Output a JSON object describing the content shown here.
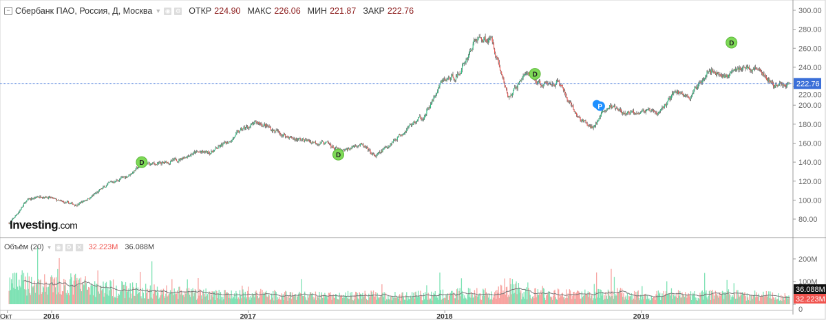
{
  "header": {
    "symbol": "Сбербанк ПАО, Россия, Д, Москва",
    "open_label": "ОТКР",
    "open": "224.90",
    "high_label": "МАКС",
    "high": "226.06",
    "low_label": "МИН",
    "low": "221.87",
    "close_label": "ЗАКР",
    "close": "222.76"
  },
  "volume_legend": {
    "label": "Объём (20)",
    "volume": "32.223M",
    "ma": "36.088M"
  },
  "logo": {
    "text": "Investing",
    "suffix": ".com"
  },
  "colors": {
    "up": "#26c281",
    "down": "#f0544f",
    "up_vol": "#7ee2b4",
    "down_vol": "#f7a3a0",
    "last_price": "#3b6fd8",
    "ma": "#777777",
    "dividend": "#7ed957",
    "event": "#1e90ff"
  },
  "chart_data": {
    "type": "candlestick",
    "price_axis": {
      "ticks": [
        "300.00",
        "280.00",
        "260.00",
        "240.00",
        "220.00",
        "200.00",
        "180.00",
        "160.00",
        "140.00",
        "120.00",
        "100.00",
        "80.00"
      ],
      "range": [
        75,
        302
      ]
    },
    "volume_axis": {
      "ticks": [
        "200M",
        "100M",
        "0"
      ],
      "range": [
        0,
        330
      ]
    },
    "time_axis": {
      "ticks": [
        "Окт",
        "2016",
        "2017",
        "2018",
        "2019"
      ]
    },
    "last_price": "222.76",
    "last_volume": "32.223M",
    "last_volume_ma": "36.088M",
    "monthly_close": {
      "months": [
        "2015-10",
        "2015-11",
        "2015-12",
        "2016-01",
        "2016-02",
        "2016-03",
        "2016-04",
        "2016-05",
        "2016-06",
        "2016-07",
        "2016-08",
        "2016-09",
        "2016-10",
        "2016-11",
        "2016-12",
        "2017-01",
        "2017-02",
        "2017-03",
        "2017-04",
        "2017-05",
        "2017-06",
        "2017-07",
        "2017-08",
        "2017-09",
        "2017-10",
        "2017-11",
        "2017-12",
        "2018-01",
        "2018-02",
        "2018-03",
        "2018-04",
        "2018-05",
        "2018-06",
        "2018-07",
        "2018-08",
        "2018-09",
        "2018-10",
        "2018-11",
        "2018-12",
        "2019-01",
        "2019-02",
        "2019-03",
        "2019-04",
        "2019-05",
        "2019-06",
        "2019-07",
        "2019-08",
        "2019-09"
      ],
      "values": [
        76,
        100,
        105,
        98,
        95,
        105,
        118,
        125,
        138,
        138,
        142,
        150,
        150,
        160,
        175,
        182,
        172,
        165,
        162,
        160,
        150,
        160,
        145,
        162,
        178,
        190,
        225,
        232,
        270,
        270,
        205,
        235,
        220,
        225,
        190,
        175,
        200,
        190,
        195,
        190,
        215,
        208,
        240,
        230,
        240,
        238,
        220,
        223
      ]
    },
    "monthly_avg_volume_m": [
      90,
      95,
      85,
      80,
      90,
      75,
      70,
      65,
      60,
      55,
      50,
      45,
      45,
      40,
      40,
      45,
      40,
      38,
      36,
      35,
      35,
      40,
      38,
      35,
      35,
      40,
      40,
      45,
      50,
      45,
      80,
      50,
      45,
      45,
      45,
      40,
      45,
      45,
      40,
      40,
      40,
      38,
      42,
      40,
      40,
      38,
      35,
      34
    ],
    "dividend_markers": [
      {
        "label": "D",
        "month": "2016-06",
        "price": 140
      },
      {
        "label": "D",
        "month": "2017-06",
        "price": 148
      },
      {
        "label": "D",
        "month": "2018-06",
        "price": 233
      },
      {
        "label": "D",
        "month": "2019-06",
        "price": 266
      }
    ],
    "event_markers": [
      {
        "label": "P",
        "month": "2018-10",
        "price": 199
      }
    ]
  }
}
